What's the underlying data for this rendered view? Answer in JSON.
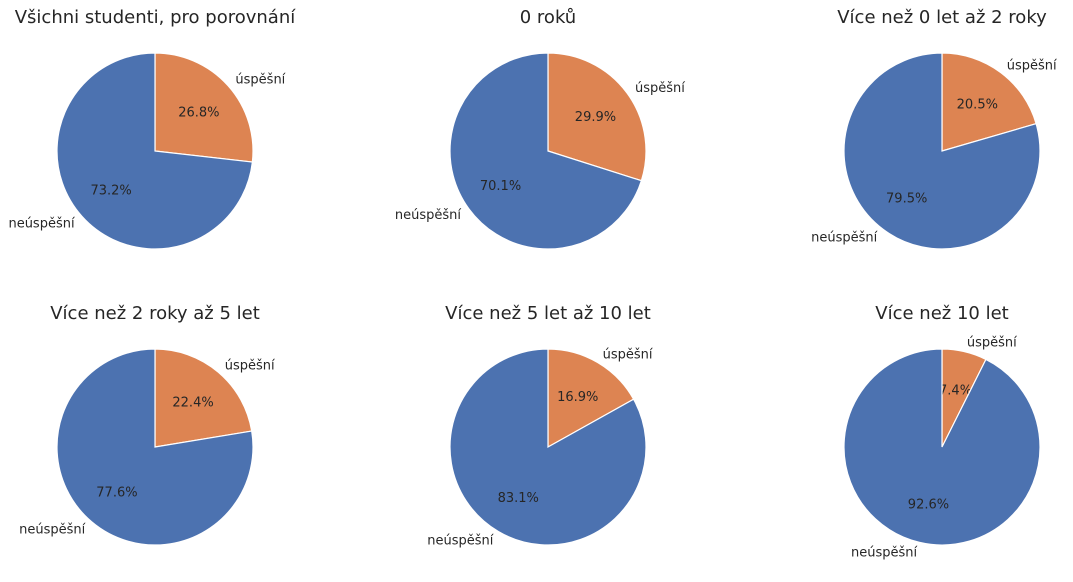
{
  "figure": {
    "colors": {
      "uspesni": "#dd8452",
      "neuspesni": "#4c72b0",
      "edge": "#ffffff"
    }
  },
  "chart_data": [
    {
      "type": "pie",
      "title": "Všichni studenti, pro porovnání",
      "labels": [
        "úspěšní",
        "neúspěšní"
      ],
      "values": [
        26.8,
        73.2
      ],
      "percent_labels": [
        "26.8%",
        "73.2%"
      ],
      "start_angle_deg": 90,
      "direction": "clockwise"
    },
    {
      "type": "pie",
      "title": "0 roků",
      "labels": [
        "úspěšní",
        "neúspěšní"
      ],
      "values": [
        29.9,
        70.1
      ],
      "percent_labels": [
        "29.9%",
        "70.1%"
      ],
      "start_angle_deg": 90,
      "direction": "clockwise"
    },
    {
      "type": "pie",
      "title": "Více než 0 let až 2 roky",
      "labels": [
        "úspěšní",
        "neúspěšní"
      ],
      "values": [
        20.5,
        79.5
      ],
      "percent_labels": [
        "20.5%",
        "79.5%"
      ],
      "start_angle_deg": 90,
      "direction": "clockwise"
    },
    {
      "type": "pie",
      "title": "Více než 2 roky až 5 let",
      "labels": [
        "úspěšní",
        "neúspěšní"
      ],
      "values": [
        22.4,
        77.6
      ],
      "percent_labels": [
        "22.4%",
        "77.6%"
      ],
      "start_angle_deg": 90,
      "direction": "clockwise"
    },
    {
      "type": "pie",
      "title": "Více než 5 let až 10 let",
      "labels": [
        "úspěšní",
        "neúspěšní"
      ],
      "values": [
        16.9,
        83.1
      ],
      "percent_labels": [
        "16.9%",
        "83.1%"
      ],
      "start_angle_deg": 90,
      "direction": "clockwise"
    },
    {
      "type": "pie",
      "title": "Více než 10 let",
      "labels": [
        "úspěšní",
        "neúspěšní"
      ],
      "values": [
        7.4,
        92.6
      ],
      "percent_labels": [
        "7.4%",
        "92.6%"
      ],
      "start_angle_deg": 90,
      "direction": "clockwise"
    }
  ]
}
